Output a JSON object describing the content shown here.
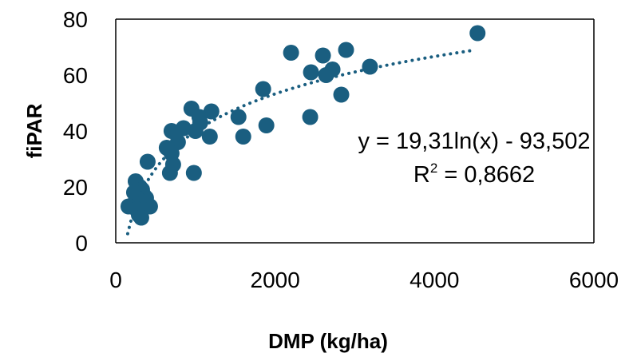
{
  "chart_data": {
    "type": "scatter",
    "xlabel": "DMP (kg/ha)",
    "ylabel": "fiPAR",
    "xlim": [
      0,
      6000
    ],
    "ylim": [
      0,
      80
    ],
    "x_ticks": [
      "0",
      "2000",
      "4000",
      "6000"
    ],
    "y_ticks": [
      "0",
      "20",
      "40",
      "60",
      "80"
    ],
    "marker_color": "#1a5e80",
    "trendline": {
      "type": "logarithmic",
      "a": 19.31,
      "b": -93.502,
      "x_start": 150,
      "x_end": 4500,
      "style": "dotted",
      "equation": "y = 19,31ln(x) - 93,502",
      "r2_label": "R",
      "r2_sup": "2",
      "r2_value": " = 0,8662"
    },
    "points": [
      {
        "x": 4540,
        "y": 75
      },
      {
        "x": 2890,
        "y": 69
      },
      {
        "x": 2200,
        "y": 68
      },
      {
        "x": 2600,
        "y": 67
      },
      {
        "x": 2720,
        "y": 62
      },
      {
        "x": 3190,
        "y": 63
      },
      {
        "x": 2450,
        "y": 61
      },
      {
        "x": 2640,
        "y": 60
      },
      {
        "x": 1850,
        "y": 55
      },
      {
        "x": 2830,
        "y": 53
      },
      {
        "x": 950,
        "y": 48
      },
      {
        "x": 1200,
        "y": 47
      },
      {
        "x": 1050,
        "y": 45
      },
      {
        "x": 1540,
        "y": 45
      },
      {
        "x": 2440,
        "y": 45
      },
      {
        "x": 1060,
        "y": 43
      },
      {
        "x": 850,
        "y": 41
      },
      {
        "x": 1890,
        "y": 42
      },
      {
        "x": 700,
        "y": 40
      },
      {
        "x": 1000,
        "y": 40
      },
      {
        "x": 1180,
        "y": 38
      },
      {
        "x": 1600,
        "y": 38
      },
      {
        "x": 780,
        "y": 36
      },
      {
        "x": 640,
        "y": 34
      },
      {
        "x": 700,
        "y": 32
      },
      {
        "x": 400,
        "y": 29
      },
      {
        "x": 720,
        "y": 28
      },
      {
        "x": 680,
        "y": 25
      },
      {
        "x": 980,
        "y": 25
      },
      {
        "x": 250,
        "y": 22
      },
      {
        "x": 300,
        "y": 20
      },
      {
        "x": 330,
        "y": 19
      },
      {
        "x": 230,
        "y": 18
      },
      {
        "x": 350,
        "y": 17
      },
      {
        "x": 270,
        "y": 16
      },
      {
        "x": 380,
        "y": 16
      },
      {
        "x": 300,
        "y": 15
      },
      {
        "x": 230,
        "y": 14
      },
      {
        "x": 430,
        "y": 13
      },
      {
        "x": 160,
        "y": 13
      },
      {
        "x": 330,
        "y": 12
      },
      {
        "x": 260,
        "y": 12
      },
      {
        "x": 290,
        "y": 10
      },
      {
        "x": 320,
        "y": 9
      }
    ]
  }
}
